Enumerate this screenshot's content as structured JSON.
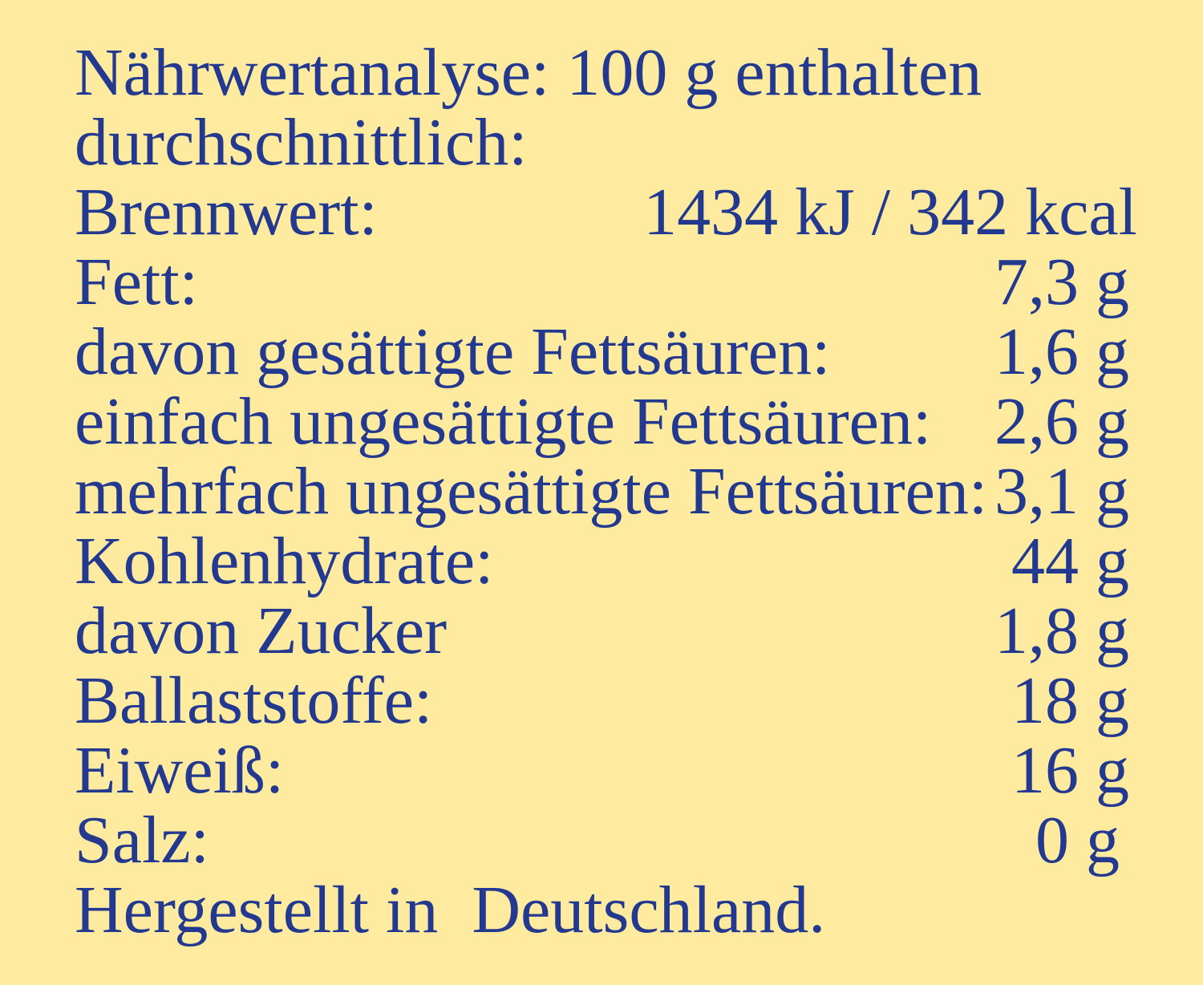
{
  "heading_line1": "Nährwertanalyse: 100 g enthalten",
  "heading_line2": "durchschnittlich:",
  "rows": [
    {
      "label": "Brennwert:",
      "value": "1434 kJ / 342 kcal"
    },
    {
      "label": "Fett:",
      "value": "7,3 g"
    },
    {
      "label": "davon gesättigte Fettsäuren:",
      "value": "1,6 g"
    },
    {
      "label": "einfach ungesättigte Fettsäuren:",
      "value": "2,6 g"
    },
    {
      "label": "mehrfach ungesättigte Fettsäuren:",
      "value": "3,1 g"
    },
    {
      "label": "Kohlenhydrate:",
      "value": "44 g"
    },
    {
      "label": "davon Zucker",
      "value": "1,8 g"
    },
    {
      "label": "Ballaststoffe:",
      "value": "18 g"
    },
    {
      "label": "Eiweiß:",
      "value": "16 g"
    },
    {
      "label": "Salz:",
      "value": "0 g"
    }
  ],
  "footer": "Hergestellt in  Deutschland.",
  "colors": {
    "background": "#FEEBA0",
    "text": "#23398F"
  }
}
